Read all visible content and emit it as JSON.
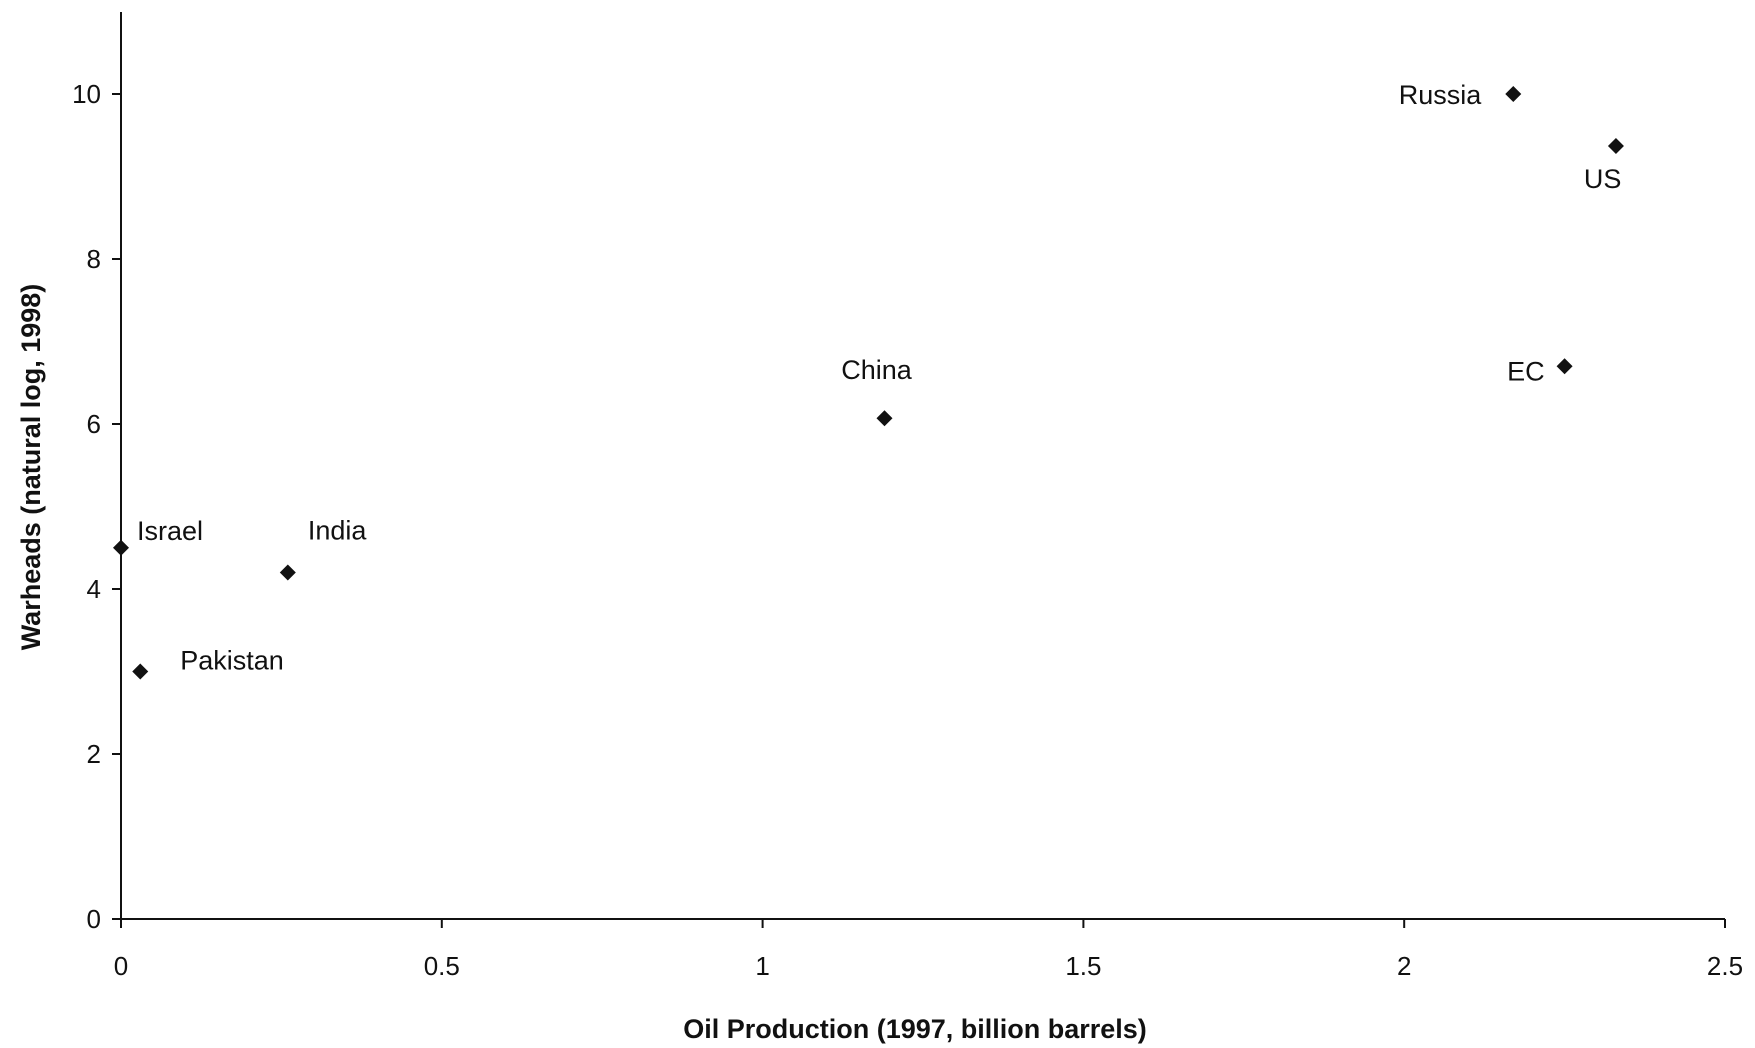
{
  "chart_data": {
    "type": "scatter",
    "title": "",
    "xlabel": "Oil Production (1997, billion barrels)",
    "ylabel": "Warheads (natural log, 1998)",
    "xlim": [
      0,
      2.5
    ],
    "ylim": [
      0,
      10
    ],
    "xticks": [
      0,
      0.5,
      1,
      1.5,
      2,
      2.5
    ],
    "xtick_labels": [
      "0",
      "0.5",
      "1",
      "1.5",
      "2",
      "2.5"
    ],
    "yticks": [
      0,
      2,
      4,
      6,
      8,
      10
    ],
    "ytick_labels": [
      "0",
      "2",
      "4",
      "6",
      "8",
      "10"
    ],
    "grid": false,
    "legend": "none",
    "marker": "diamond",
    "marker_color": "#111111",
    "points": [
      {
        "label": "Russia",
        "x": 2.17,
        "y": 10.0
      },
      {
        "label": "US",
        "x": 2.33,
        "y": 9.37
      },
      {
        "label": "China",
        "x": 1.19,
        "y": 6.07
      },
      {
        "label": "EC",
        "x": 2.25,
        "y": 6.7
      },
      {
        "label": "Israel",
        "x": 0.0,
        "y": 4.5
      },
      {
        "label": "India",
        "x": 0.26,
        "y": 4.2
      },
      {
        "label": "Pakistan",
        "x": 0.03,
        "y": 3.0
      }
    ]
  }
}
